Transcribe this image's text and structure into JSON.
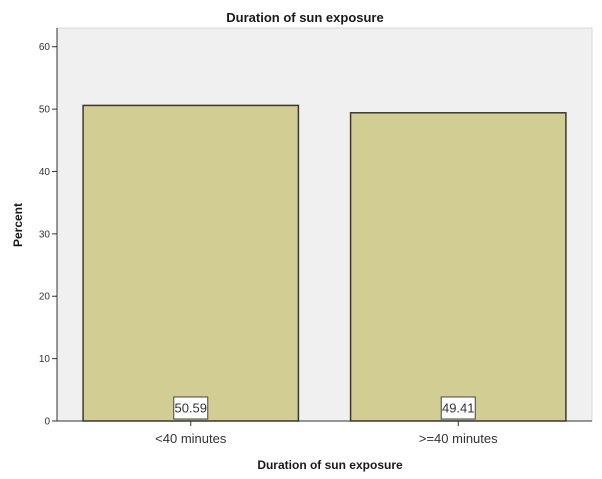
{
  "chart_data": {
    "type": "bar",
    "title": "Duration of sun exposure",
    "xlabel": "Duration of sun exposure",
    "ylabel": "Percent",
    "categories": [
      "<40 minutes",
      ">=40 minutes"
    ],
    "values": [
      50.59,
      49.41
    ],
    "data_labels": [
      "50.59",
      "49.41"
    ],
    "ylim": [
      0,
      63
    ],
    "yticks": [
      0,
      10,
      20,
      30,
      40,
      50,
      60
    ],
    "ytick_labels": [
      "0",
      "10",
      "20",
      "30",
      "40",
      "50",
      "60"
    ],
    "grid": false,
    "legend": "none",
    "colors": {
      "bar_fill": "#D1CD93",
      "bar_stroke": "#3b3b2a",
      "plot_background": "#F0F0F0",
      "label_box_fill": "#FFFFFF"
    }
  }
}
